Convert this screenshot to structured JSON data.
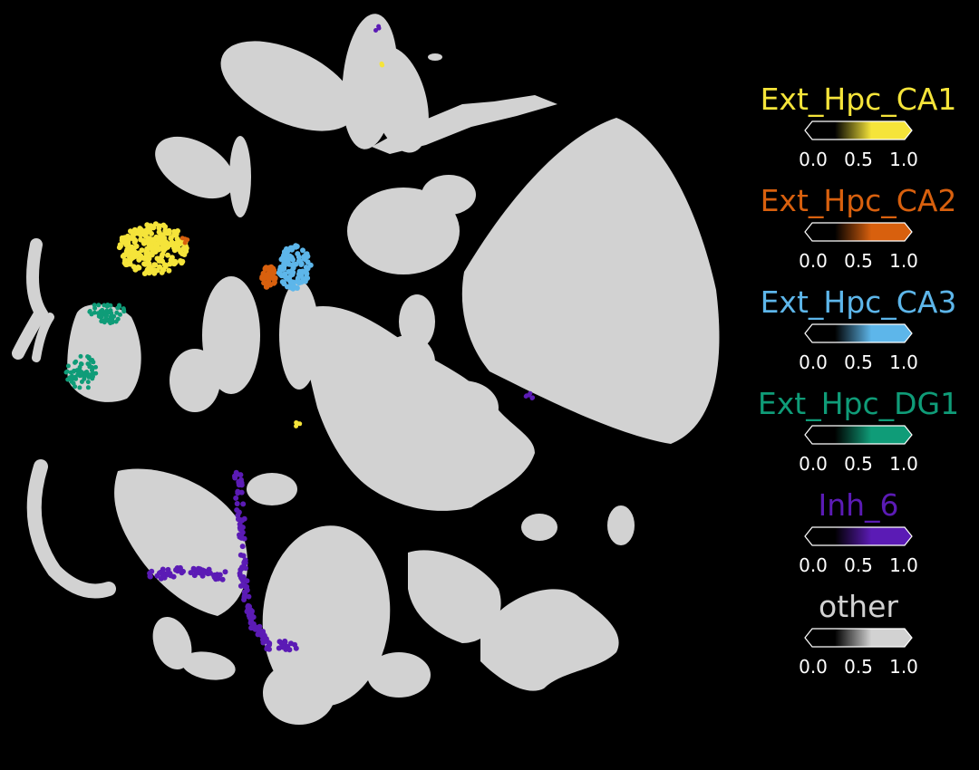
{
  "chart_data": {
    "type": "scatter",
    "title": "",
    "xlabel": "",
    "ylabel": "",
    "grid": false,
    "background": "#000000",
    "legend_placement": "right",
    "colorbar_ticks": [
      "0.0",
      "0.5",
      "1.0"
    ],
    "series": [
      {
        "name": "Ext_Hpc_CA1",
        "color": "#f5e43a"
      },
      {
        "name": "Ext_Hpc_CA2",
        "color": "#d8600e"
      },
      {
        "name": "Ext_Hpc_CA3",
        "color": "#5db6ea"
      },
      {
        "name": "Ext_Hpc_DG1",
        "color": "#0f9c78"
      },
      {
        "name": "Inh_6",
        "color": "#5b1bb5"
      },
      {
        "name": "other",
        "color": "#d2d2d2"
      }
    ]
  }
}
